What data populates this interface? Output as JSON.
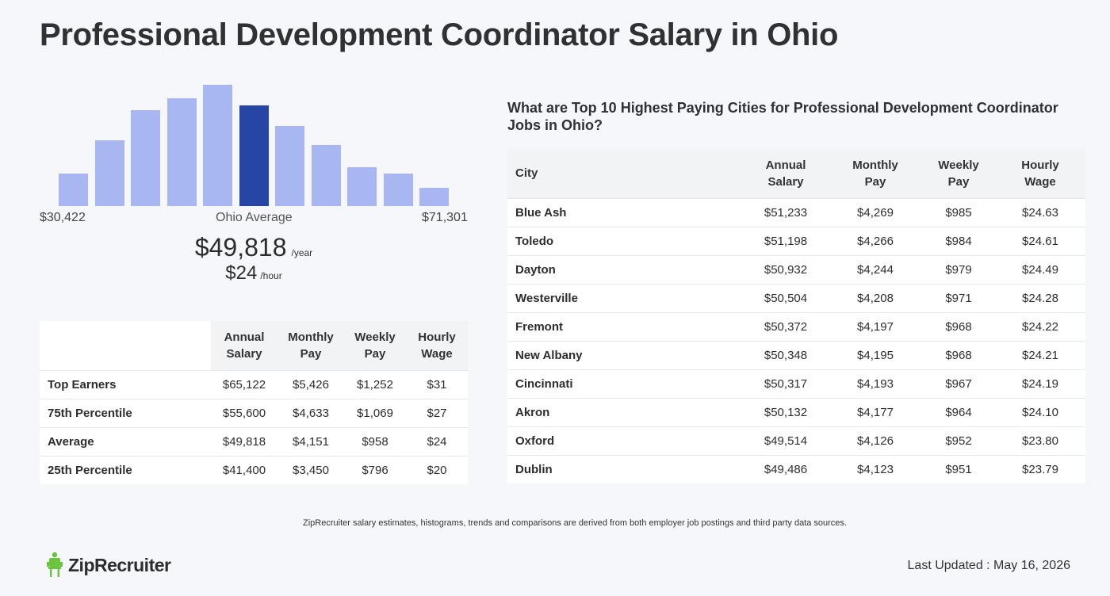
{
  "title": "Professional Development Coordinator Salary in Ohio",
  "histogram": {
    "min_label": "$30,422",
    "mid_label": "Ohio Average",
    "max_label": "$71,301",
    "bar_levels": [
      0.27,
      0.54,
      0.79,
      0.89,
      1.0,
      0.83,
      0.66,
      0.5,
      0.32,
      0.27,
      0.15
    ],
    "highlight_index": 5,
    "colors": {
      "bar": "#a8b7f2",
      "highlight": "#2745a5"
    }
  },
  "average": {
    "annual": "$49,818",
    "annual_unit": "/year",
    "hourly": "$24",
    "hourly_unit": "/hour"
  },
  "percentile_table": {
    "headers": [
      "",
      "Annual\nSalary",
      "Monthly\nPay",
      "Weekly\nPay",
      "Hourly\nWage"
    ],
    "rows": [
      [
        "Top Earners",
        "$65,122",
        "$5,426",
        "$1,252",
        "$31"
      ],
      [
        "75th Percentile",
        "$55,600",
        "$4,633",
        "$1,069",
        "$27"
      ],
      [
        "Average",
        "$49,818",
        "$4,151",
        "$958",
        "$24"
      ],
      [
        "25th Percentile",
        "$41,400",
        "$3,450",
        "$796",
        "$20"
      ]
    ]
  },
  "cities": {
    "heading": "What are Top 10 Highest Paying Cities for Professional Development Coordinator Jobs in Ohio?",
    "headers": [
      "City",
      "Annual\nSalary",
      "Monthly\nPay",
      "Weekly\nPay",
      "Hourly\nWage"
    ],
    "rows": [
      [
        "Blue Ash",
        "$51,233",
        "$4,269",
        "$985",
        "$24.63"
      ],
      [
        "Toledo",
        "$51,198",
        "$4,266",
        "$984",
        "$24.61"
      ],
      [
        "Dayton",
        "$50,932",
        "$4,244",
        "$979",
        "$24.49"
      ],
      [
        "Westerville",
        "$50,504",
        "$4,208",
        "$971",
        "$24.28"
      ],
      [
        "Fremont",
        "$50,372",
        "$4,197",
        "$968",
        "$24.22"
      ],
      [
        "New Albany",
        "$50,348",
        "$4,195",
        "$968",
        "$24.21"
      ],
      [
        "Cincinnati",
        "$50,317",
        "$4,193",
        "$967",
        "$24.19"
      ],
      [
        "Akron",
        "$50,132",
        "$4,177",
        "$964",
        "$24.10"
      ],
      [
        "Oxford",
        "$49,514",
        "$4,126",
        "$952",
        "$23.80"
      ],
      [
        "Dublin",
        "$49,486",
        "$4,123",
        "$951",
        "$23.79"
      ]
    ]
  },
  "footnote": "ZipRecruiter salary estimates, histograms, trends and comparisons are derived from both employer job postings and third party data sources.",
  "brand": {
    "name": "ZipRecruiter",
    "icon": "ziprecruiter-chair-icon",
    "color": "#6bc43d"
  },
  "last_updated": "Last Updated : May 16, 2026"
}
